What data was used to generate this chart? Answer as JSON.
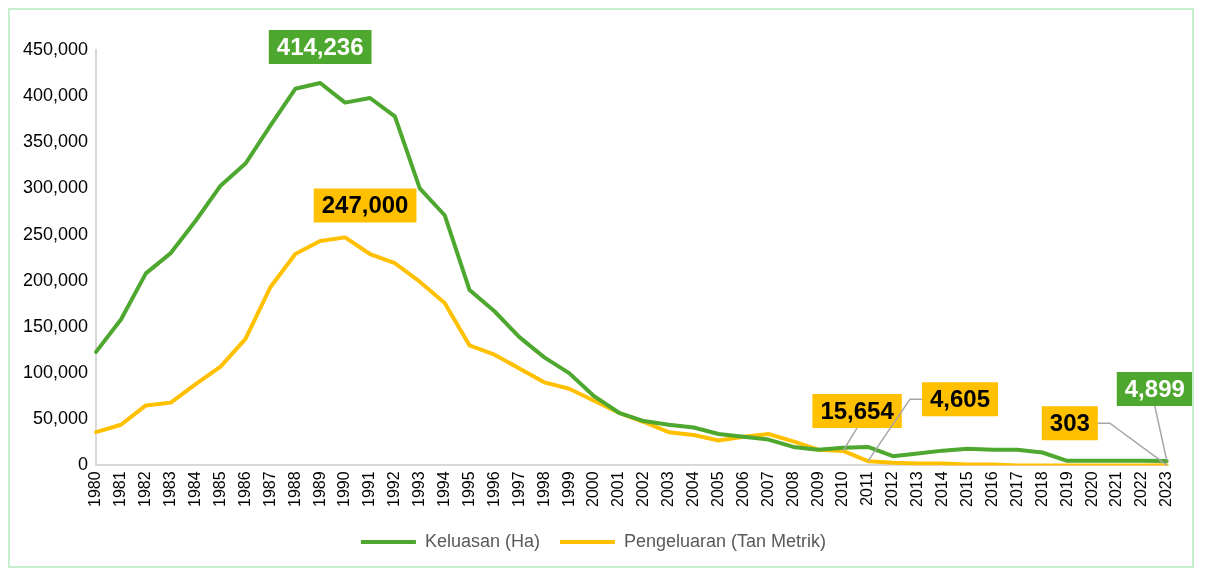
{
  "chart_data": {
    "type": "line",
    "categories": [
      "1980",
      "1981",
      "1982",
      "1983",
      "1984",
      "1985",
      "1986",
      "1987",
      "1988",
      "1989",
      "1990",
      "1991",
      "1992",
      "1993",
      "1994",
      "1995",
      "1996",
      "1997",
      "1998",
      "1999",
      "2000",
      "2001",
      "2002",
      "2003",
      "2004",
      "2005",
      "2006",
      "2007",
      "2008",
      "2009",
      "2010",
      "2011",
      "2012",
      "2013",
      "2014",
      "2015",
      "2016",
      "2017",
      "2018",
      "2019",
      "2020",
      "2021",
      "2022",
      "2023"
    ],
    "series": [
      {
        "name": "Keluasan (Ha)",
        "color": "#4ea72e",
        "values": [
          123000,
          158000,
          208000,
          230000,
          265000,
          303000,
          327000,
          368000,
          408000,
          414236,
          393000,
          398000,
          378000,
          300000,
          271000,
          190000,
          167000,
          139000,
          117000,
          100000,
          75000,
          57000,
          48000,
          44000,
          41000,
          34000,
          31000,
          28000,
          20000,
          17000,
          19000,
          20000,
          10000,
          13000,
          16000,
          18000,
          17000,
          17000,
          14000,
          5000,
          5000,
          5000,
          5000,
          4899
        ],
        "value_labels": [
          null,
          null,
          null,
          null,
          null,
          null,
          null,
          null,
          null,
          "414,236",
          null,
          null,
          null,
          null,
          null,
          null,
          null,
          null,
          null,
          null,
          null,
          null,
          null,
          null,
          null,
          null,
          null,
          null,
          null,
          null,
          null,
          null,
          null,
          null,
          null,
          null,
          null,
          null,
          null,
          null,
          null,
          null,
          null,
          "4,899"
        ]
      },
      {
        "name": "Pengeluaran (Tan Metrik)",
        "color": "#ffc000",
        "values": [
          36000,
          44000,
          65000,
          68000,
          88000,
          107000,
          137000,
          193000,
          229000,
          243000,
          247000,
          229000,
          219000,
          199000,
          176000,
          130000,
          120000,
          105000,
          90000,
          83000,
          70000,
          57000,
          47000,
          36000,
          33000,
          27000,
          31000,
          34000,
          26000,
          17000,
          15654,
          4605,
          3000,
          2000,
          2000,
          1000,
          1000,
          0,
          0,
          0,
          0,
          0,
          0,
          303
        ],
        "value_labels": [
          null,
          null,
          null,
          null,
          null,
          null,
          null,
          null,
          null,
          null,
          "247,000",
          null,
          null,
          null,
          null,
          null,
          null,
          null,
          null,
          null,
          null,
          null,
          null,
          null,
          null,
          null,
          null,
          null,
          null,
          null,
          "15,654",
          "4,605",
          null,
          null,
          null,
          null,
          null,
          null,
          null,
          null,
          null,
          null,
          null,
          "303"
        ]
      }
    ],
    "ylim": [
      0,
      450000
    ],
    "yticks": [
      0,
      {
        "value": 50000,
        "label": "50,000"
      },
      {
        "value": 100000,
        "label": "100,000"
      },
      {
        "value": 150000,
        "label": "150,000"
      },
      {
        "value": 200000,
        "label": "200,000"
      },
      {
        "value": 250000,
        "label": "250,000"
      },
      {
        "value": 300000,
        "label": "300,000"
      },
      {
        "value": 350000,
        "label": "350,000"
      },
      {
        "value": 400000,
        "label": "400,000"
      },
      {
        "value": 450000,
        "label": "450,000"
      }
    ],
    "grid": false,
    "legend": "bottom",
    "marker": "none",
    "line_style": "solid"
  }
}
